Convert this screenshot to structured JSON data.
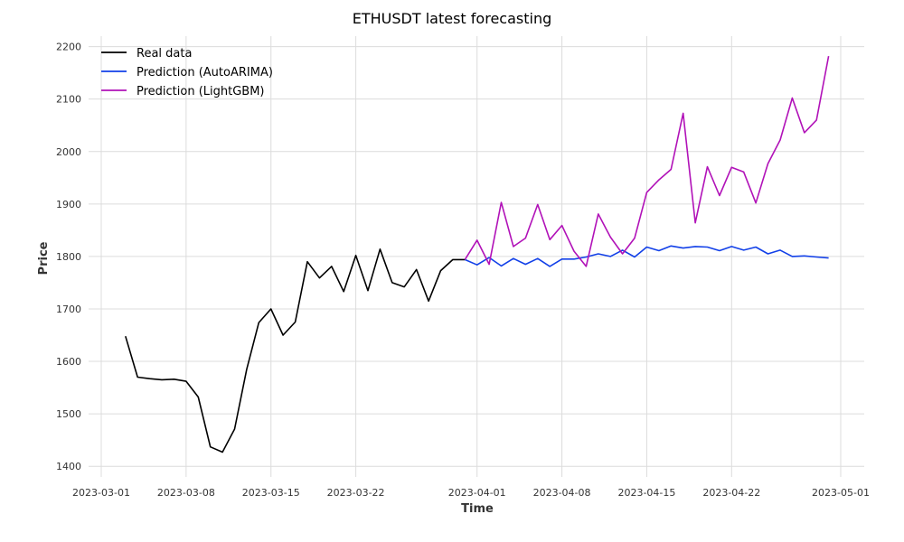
{
  "chart_data": {
    "type": "line",
    "title": "ETHUSDT latest forecasting",
    "xlabel": "Time",
    "ylabel": "Price",
    "x_start": "2023-03-01",
    "x_range": [
      "2023-03-01",
      "2023-05-01"
    ],
    "ylim": [
      1390,
      2220
    ],
    "xticks": [
      {
        "label": "2023-03-01",
        "date": "2023-03-01"
      },
      {
        "label": "2023-03-08",
        "date": "2023-03-08"
      },
      {
        "label": "2023-03-15",
        "date": "2023-03-15"
      },
      {
        "label": "2023-03-22",
        "date": "2023-03-22"
      },
      {
        "label": "2023-04-01",
        "date": "2023-04-01"
      },
      {
        "label": "2023-04-08",
        "date": "2023-04-08"
      },
      {
        "label": "2023-04-15",
        "date": "2023-04-15"
      },
      {
        "label": "2023-04-22",
        "date": "2023-04-22"
      },
      {
        "label": "2023-05-01",
        "date": "2023-05-01"
      }
    ],
    "yticks": [
      1400,
      1500,
      1600,
      1700,
      1800,
      1900,
      2000,
      2100,
      2200
    ],
    "grid": true,
    "legend_position": "top-left",
    "series": [
      {
        "name": "Real data",
        "color": "#000000",
        "x": [
          "2023-03-03",
          "2023-03-04",
          "2023-03-05",
          "2023-03-06",
          "2023-03-07",
          "2023-03-08",
          "2023-03-09",
          "2023-03-10",
          "2023-03-11",
          "2023-03-12",
          "2023-03-13",
          "2023-03-14",
          "2023-03-15",
          "2023-03-16",
          "2023-03-17",
          "2023-03-18",
          "2023-03-19",
          "2023-03-20",
          "2023-03-21",
          "2023-03-22",
          "2023-03-23",
          "2023-03-24",
          "2023-03-25",
          "2023-03-26",
          "2023-03-27",
          "2023-03-28",
          "2023-03-29",
          "2023-03-30",
          "2023-03-31"
        ],
        "y": [
          1648,
          1570,
          1567,
          1565,
          1566,
          1562,
          1532,
          1437,
          1427,
          1471,
          1585,
          1674,
          1700,
          1650,
          1675,
          1790,
          1759,
          1781,
          1733,
          1802,
          1735,
          1814,
          1750,
          1742,
          1775,
          1715,
          1773,
          1794,
          1794
        ]
      },
      {
        "name": "Prediction (AutoARIMA)",
        "color": "#1240e8",
        "x": [
          "2023-03-31",
          "2023-04-01",
          "2023-04-02",
          "2023-04-03",
          "2023-04-04",
          "2023-04-05",
          "2023-04-06",
          "2023-04-07",
          "2023-04-08",
          "2023-04-09",
          "2023-04-10",
          "2023-04-11",
          "2023-04-12",
          "2023-04-13",
          "2023-04-14",
          "2023-04-15",
          "2023-04-16",
          "2023-04-17",
          "2023-04-18",
          "2023-04-19",
          "2023-04-20",
          "2023-04-21",
          "2023-04-22",
          "2023-04-23",
          "2023-04-24",
          "2023-04-25",
          "2023-04-26",
          "2023-04-27",
          "2023-04-28",
          "2023-04-29",
          "2023-04-30"
        ],
        "y": [
          1794,
          1784,
          1798,
          1782,
          1796,
          1785,
          1796,
          1781,
          1795,
          1795,
          1799,
          1805,
          1800,
          1812,
          1799,
          1818,
          1811,
          1820,
          1816,
          1819,
          1818,
          1811,
          1819,
          1812,
          1818,
          1805,
          1812,
          1800,
          1801,
          1799,
          1797
        ]
      },
      {
        "name": "Prediction (LightGBM)",
        "color": "#b112b8",
        "x": [
          "2023-03-31",
          "2023-04-01",
          "2023-04-02",
          "2023-04-03",
          "2023-04-04",
          "2023-04-05",
          "2023-04-06",
          "2023-04-07",
          "2023-04-08",
          "2023-04-09",
          "2023-04-10",
          "2023-04-11",
          "2023-04-12",
          "2023-04-13",
          "2023-04-14",
          "2023-04-15",
          "2023-04-16",
          "2023-04-17",
          "2023-04-18",
          "2023-04-19",
          "2023-04-20",
          "2023-04-21",
          "2023-04-22",
          "2023-04-23",
          "2023-04-24",
          "2023-04-25",
          "2023-04-26",
          "2023-04-27",
          "2023-04-28",
          "2023-04-29",
          "2023-04-30"
        ],
        "y": [
          1794,
          1831,
          1785,
          1903,
          1819,
          1835,
          1899,
          1832,
          1859,
          1810,
          1781,
          1881,
          1837,
          1805,
          1835,
          1922,
          1946,
          1966,
          2073,
          1864,
          1971,
          1916,
          1970,
          1961,
          1902,
          1977,
          2022,
          2102,
          2036,
          2060,
          2182
        ]
      }
    ]
  }
}
